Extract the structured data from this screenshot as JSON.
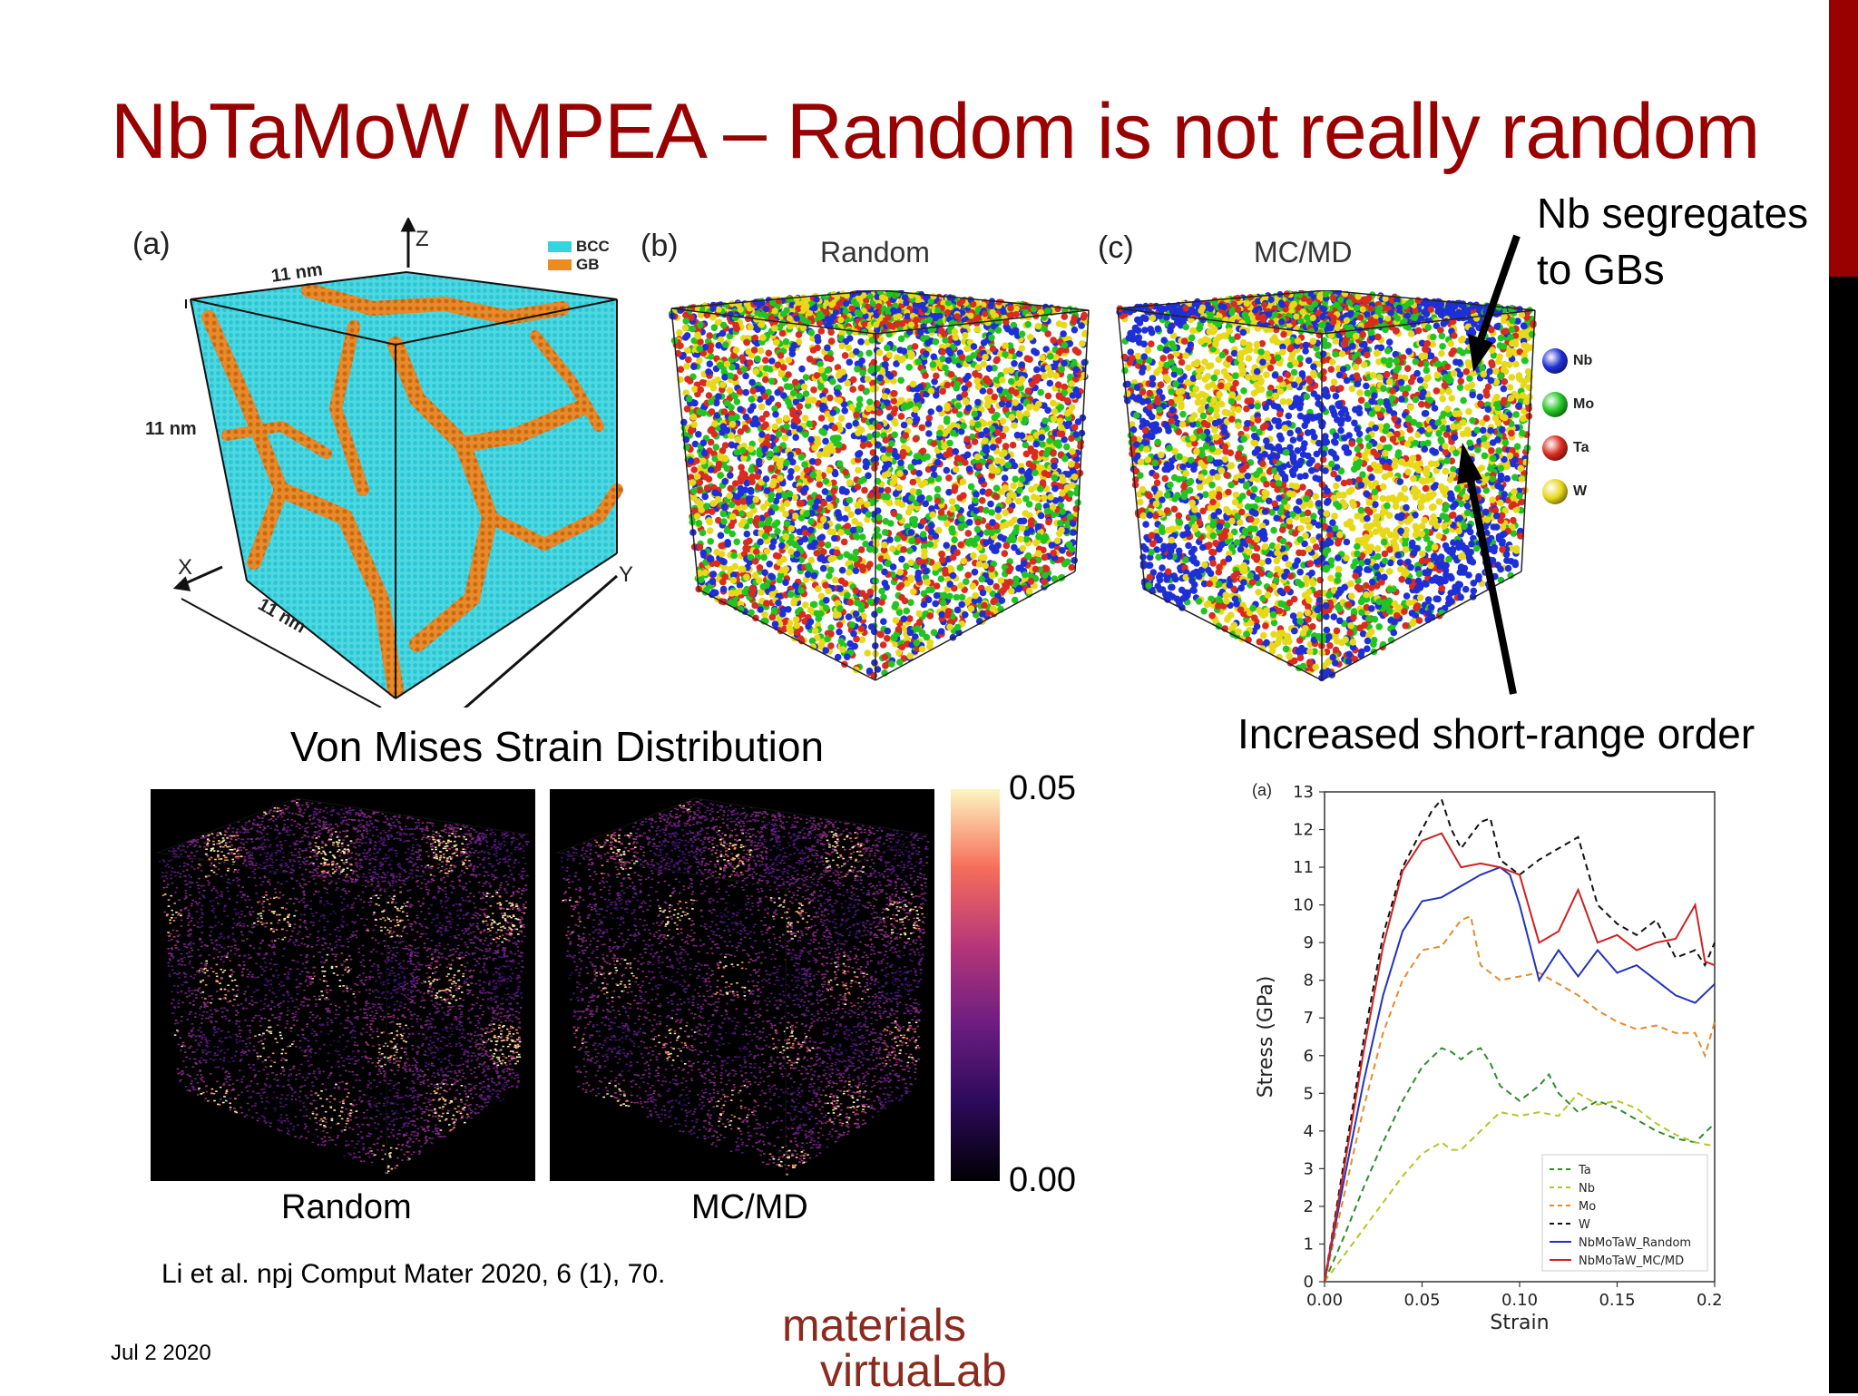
{
  "slide": {
    "title": "NbTaMoW MPEA – Random is not really random",
    "date": "Jul 2 2020",
    "citation": "Li et al. npj Comput Mater 2020, 6 (1), 70.",
    "logo_line1": "materials",
    "logo_line2": "virtuaLab"
  },
  "annotations": {
    "segregation_line1": "Nb segregates",
    "segregation_line2": "to GBs",
    "short_range": "Increased short-range order"
  },
  "panel_a": {
    "letter": "(a)",
    "legend": [
      {
        "label": "BCC",
        "color": "#33d6e0"
      },
      {
        "label": "GB",
        "color": "#ee8a22"
      }
    ],
    "dim_top": "11 nm",
    "dim_left": "11 nm",
    "dim_bottom": "11 nm",
    "axis_z": "Z",
    "axis_x": "X",
    "axis_y": "Y"
  },
  "panel_b": {
    "letter": "(b)",
    "title": "Random"
  },
  "panel_c": {
    "letter": "(c)",
    "title": "MC/MD"
  },
  "atom_legend": [
    {
      "label": "Nb",
      "color": "#1f2fd6"
    },
    {
      "label": "Mo",
      "color": "#22c422"
    },
    {
      "label": "Ta",
      "color": "#d92b1f"
    },
    {
      "label": "W",
      "color": "#e8d81a"
    }
  ],
  "strain": {
    "heading": "Von Mises Strain Distribution",
    "caption_left": "Random",
    "caption_right": "MC/MD",
    "cbar_max": "0.05",
    "cbar_min": "0.00"
  },
  "chart_data": {
    "type": "line",
    "panel_label": "(a)",
    "xlabel": "Strain",
    "ylabel": "Stress (GPa)",
    "xlim": [
      0,
      0.2
    ],
    "ylim": [
      0,
      13
    ],
    "xticks": [
      "0.00",
      "0.05",
      "0.10",
      "0.15",
      "0.20"
    ],
    "yticks": [
      "0",
      "1",
      "2",
      "3",
      "4",
      "5",
      "6",
      "7",
      "8",
      "9",
      "10",
      "11",
      "12",
      "13"
    ],
    "legend_position": "bottom-right",
    "series": [
      {
        "name": "Ta",
        "color": "#2e8b2e",
        "dash": true,
        "x": [
          0,
          0.01,
          0.02,
          0.03,
          0.04,
          0.05,
          0.06,
          0.065,
          0.07,
          0.075,
          0.08,
          0.085,
          0.09,
          0.1,
          0.11,
          0.115,
          0.12,
          0.13,
          0.14,
          0.15,
          0.16,
          0.17,
          0.18,
          0.19,
          0.2
        ],
        "y": [
          0,
          1.2,
          2.5,
          3.7,
          4.8,
          5.7,
          6.2,
          6.1,
          5.9,
          6.1,
          6.2,
          5.8,
          5.2,
          4.8,
          5.2,
          5.5,
          5.0,
          4.5,
          4.8,
          4.6,
          4.3,
          4.0,
          3.8,
          3.7,
          4.2
        ]
      },
      {
        "name": "Nb",
        "color": "#b8c424",
        "dash": true,
        "x": [
          0,
          0.01,
          0.02,
          0.03,
          0.04,
          0.05,
          0.06,
          0.065,
          0.07,
          0.08,
          0.09,
          0.1,
          0.11,
          0.12,
          0.13,
          0.14,
          0.15,
          0.16,
          0.17,
          0.18,
          0.19,
          0.2
        ],
        "y": [
          0,
          0.7,
          1.4,
          2.1,
          2.8,
          3.4,
          3.7,
          3.5,
          3.5,
          4.0,
          4.5,
          4.4,
          4.5,
          4.4,
          5.0,
          4.7,
          4.8,
          4.6,
          4.2,
          3.9,
          3.7,
          3.6
        ]
      },
      {
        "name": "Mo",
        "color": "#e88a2a",
        "dash": true,
        "x": [
          0,
          0.01,
          0.02,
          0.03,
          0.04,
          0.05,
          0.06,
          0.07,
          0.075,
          0.08,
          0.09,
          0.1,
          0.11,
          0.12,
          0.13,
          0.14,
          0.15,
          0.16,
          0.17,
          0.18,
          0.19,
          0.195,
          0.2
        ],
        "y": [
          0,
          2.3,
          4.6,
          6.6,
          8.0,
          8.8,
          8.9,
          9.6,
          9.7,
          8.4,
          8.0,
          8.1,
          8.2,
          7.9,
          7.6,
          7.2,
          6.9,
          6.7,
          6.8,
          6.6,
          6.6,
          6.0,
          6.9
        ]
      },
      {
        "name": "W",
        "color": "#111111",
        "dash": true,
        "x": [
          0,
          0.01,
          0.02,
          0.03,
          0.04,
          0.05,
          0.055,
          0.06,
          0.065,
          0.07,
          0.08,
          0.085,
          0.09,
          0.1,
          0.11,
          0.12,
          0.13,
          0.14,
          0.15,
          0.16,
          0.17,
          0.18,
          0.19,
          0.195,
          0.2
        ],
        "y": [
          0,
          3.2,
          6.4,
          9.2,
          11.0,
          12.0,
          12.5,
          12.8,
          12.0,
          11.5,
          12.2,
          12.3,
          11.2,
          10.8,
          11.2,
          11.5,
          11.8,
          10.0,
          9.5,
          9.2,
          9.6,
          8.6,
          8.8,
          8.4,
          9.0
        ]
      },
      {
        "name": "NbMoTaW_Random",
        "color": "#2233bb",
        "dash": false,
        "x": [
          0,
          0.01,
          0.02,
          0.03,
          0.04,
          0.05,
          0.06,
          0.07,
          0.08,
          0.09,
          0.095,
          0.1,
          0.105,
          0.11,
          0.12,
          0.13,
          0.14,
          0.15,
          0.16,
          0.17,
          0.18,
          0.19,
          0.2
        ],
        "y": [
          0,
          2.7,
          5.3,
          7.6,
          9.3,
          10.1,
          10.2,
          10.5,
          10.8,
          11.0,
          10.8,
          10.0,
          9.0,
          8.0,
          8.8,
          8.1,
          8.8,
          8.2,
          8.4,
          8.0,
          7.6,
          7.4,
          7.9
        ]
      },
      {
        "name": "NbMoTaW_MC/MD",
        "color": "#cc2222",
        "dash": false,
        "x": [
          0,
          0.01,
          0.02,
          0.03,
          0.04,
          0.05,
          0.06,
          0.07,
          0.08,
          0.09,
          0.1,
          0.11,
          0.12,
          0.13,
          0.14,
          0.15,
          0.16,
          0.17,
          0.18,
          0.19,
          0.195,
          0.2
        ],
        "y": [
          0,
          3.0,
          6.1,
          8.9,
          10.9,
          11.7,
          11.9,
          11.0,
          11.1,
          11.0,
          10.8,
          9.0,
          9.3,
          10.4,
          9.0,
          9.2,
          8.8,
          9.0,
          9.1,
          10.0,
          8.5,
          8.4
        ]
      }
    ]
  }
}
